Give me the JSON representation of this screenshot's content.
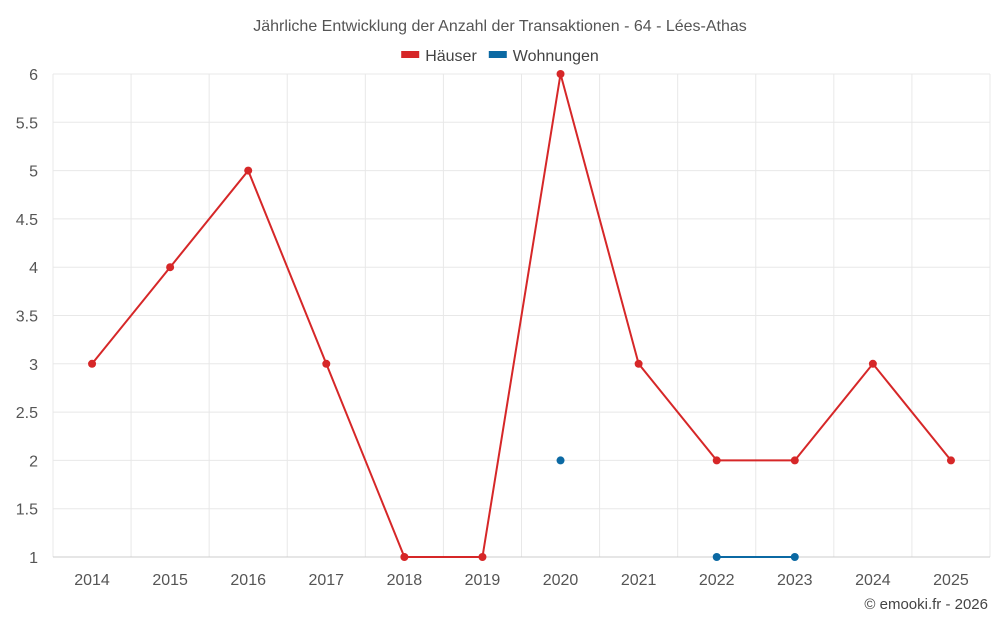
{
  "chart_data": {
    "type": "line",
    "title": "Jährliche Entwicklung der Anzahl der Transaktionen - 64 - Lées-Athas",
    "x": [
      "2014",
      "2015",
      "2016",
      "2017",
      "2018",
      "2019",
      "2020",
      "2021",
      "2022",
      "2023",
      "2024",
      "2025"
    ],
    "series": [
      {
        "name": "Häuser",
        "color": "#d62728",
        "values": [
          3,
          4,
          5,
          3,
          1,
          1,
          6,
          3,
          2,
          2,
          3,
          2
        ]
      },
      {
        "name": "Wohnungen",
        "color": "#0b69a3",
        "values": [
          null,
          null,
          null,
          null,
          null,
          null,
          2,
          null,
          1,
          1,
          null,
          null
        ]
      }
    ],
    "yticks": [
      "1",
      "1.5",
      "2",
      "2.5",
      "3",
      "3.5",
      "4",
      "4.5",
      "5",
      "5.5",
      "6"
    ],
    "ylim": [
      1,
      6
    ],
    "grid": true,
    "legend_position": "top-center",
    "xlabel": "",
    "ylabel": ""
  },
  "credit": "© emooki.fr - 2026"
}
